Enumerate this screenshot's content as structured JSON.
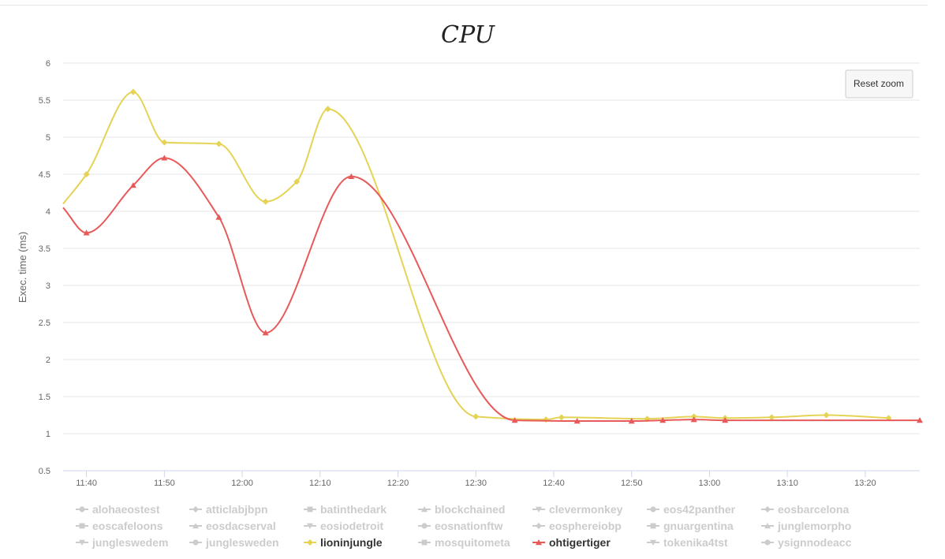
{
  "chart_data": {
    "type": "line",
    "title": "CPU",
    "ylabel": "Exec. time (ms)",
    "xlabel": "",
    "ylim": [
      0.5,
      6
    ],
    "y_ticks": [
      "0.5",
      "1",
      "1.5",
      "2",
      "2.5",
      "3",
      "3.5",
      "4",
      "4.5",
      "5",
      "5.5",
      "6"
    ],
    "x_range": [
      "11:37",
      "13:27"
    ],
    "x_ticks": [
      "11:40",
      "11:50",
      "12:00",
      "12:10",
      "12:20",
      "12:30",
      "12:40",
      "12:50",
      "13:00",
      "13:10",
      "13:20"
    ],
    "grid": true,
    "legend_position": "bottom",
    "reset_zoom_label": "Reset zoom",
    "series": [
      {
        "name": "lioninjungle",
        "color": "#e4d354",
        "marker": "diamond",
        "visible": true,
        "points": [
          [
            "11:37",
            4.1
          ],
          [
            "11:40",
            4.5
          ],
          [
            "11:46",
            5.61
          ],
          [
            "11:50",
            4.93
          ],
          [
            "11:57",
            4.91
          ],
          [
            "12:03",
            4.13
          ],
          [
            "12:07",
            4.4
          ],
          [
            "12:11",
            5.38
          ],
          [
            "12:30",
            1.23
          ],
          [
            "12:39",
            1.19
          ],
          [
            "12:41",
            1.22
          ],
          [
            "12:52",
            1.2
          ],
          [
            "12:58",
            1.23
          ],
          [
            "13:02",
            1.21
          ],
          [
            "13:08",
            1.22
          ],
          [
            "13:15",
            1.25
          ],
          [
            "13:23",
            1.21
          ]
        ]
      },
      {
        "name": "ohtigertiger",
        "color": "#e85a5a",
        "marker": "triangle",
        "visible": true,
        "points": [
          [
            "11:37",
            4.05
          ],
          [
            "11:40",
            3.71
          ],
          [
            "11:46",
            4.35
          ],
          [
            "11:50",
            4.72
          ],
          [
            "11:57",
            3.92
          ],
          [
            "12:03",
            2.36
          ],
          [
            "12:14",
            4.47
          ],
          [
            "12:35",
            1.18
          ],
          [
            "12:43",
            1.17
          ],
          [
            "12:50",
            1.17
          ],
          [
            "12:54",
            1.18
          ],
          [
            "12:58",
            1.19
          ],
          [
            "13:02",
            1.18
          ],
          [
            "13:27",
            1.18
          ]
        ]
      }
    ],
    "legend": [
      {
        "name": "alohaeostest",
        "marker": "circle",
        "visible": false
      },
      {
        "name": "atticlabjbpn",
        "marker": "diamond",
        "visible": false
      },
      {
        "name": "batinthedark",
        "marker": "square",
        "visible": false
      },
      {
        "name": "blockchained",
        "marker": "triangle",
        "visible": false
      },
      {
        "name": "clevermonkey",
        "marker": "triangle-down",
        "visible": false
      },
      {
        "name": "eos42panther",
        "marker": "circle",
        "visible": false
      },
      {
        "name": "eosbarcelona",
        "marker": "diamond",
        "visible": false
      },
      {
        "name": "eoscafeloons",
        "marker": "square",
        "visible": false
      },
      {
        "name": "eosdacserval",
        "marker": "triangle",
        "visible": false
      },
      {
        "name": "eosiodetroit",
        "marker": "triangle-down",
        "visible": false
      },
      {
        "name": "eosnationftw",
        "marker": "circle",
        "visible": false
      },
      {
        "name": "eosphereiobp",
        "marker": "diamond",
        "visible": false
      },
      {
        "name": "gnuargentina",
        "marker": "square",
        "visible": false
      },
      {
        "name": "junglemorpho",
        "marker": "triangle",
        "visible": false
      },
      {
        "name": "jungleswedem",
        "marker": "triangle-down",
        "visible": false
      },
      {
        "name": "junglesweden",
        "marker": "circle",
        "visible": false
      },
      {
        "name": "lioninjungle",
        "marker": "diamond",
        "visible": true,
        "color": "#e4d354"
      },
      {
        "name": "mosquitometa",
        "marker": "square",
        "visible": false
      },
      {
        "name": "ohtigertiger",
        "marker": "triangle",
        "visible": true,
        "color": "#e85a5a"
      },
      {
        "name": "tokenika4tst",
        "marker": "triangle-down",
        "visible": false
      },
      {
        "name": "ysignnodeacc",
        "marker": "circle",
        "visible": false
      }
    ]
  }
}
